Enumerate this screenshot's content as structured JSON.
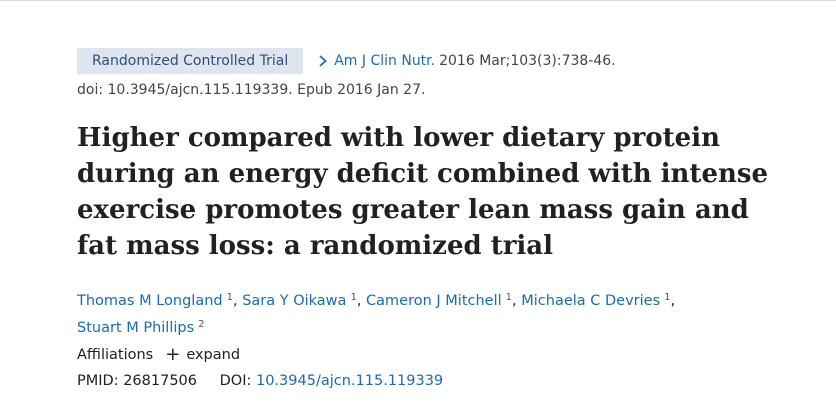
{
  "article": {
    "publication_type": "Randomized Controlled Trial",
    "journal": "Am J Clin Nutr.",
    "citation": "2016 Mar;103(3):738-46.",
    "doi_line": "doi: 10.3945/ajcn.115.119339. Epub 2016 Jan 27.",
    "title": "Higher compared with lower dietary protein during an energy deficit combined with intense exercise promotes greater lean mass gain and fat mass loss: a randomized trial",
    "authors": [
      {
        "name": "Thomas M Longland",
        "aff": "1"
      },
      {
        "name": "Sara Y Oikawa",
        "aff": "1"
      },
      {
        "name": "Cameron J Mitchell",
        "aff": "1"
      },
      {
        "name": "Michaela C Devries",
        "aff": "1"
      },
      {
        "name": "Stuart M Phillips",
        "aff": "2"
      }
    ],
    "affiliations_label": "Affiliations",
    "expand_label": "expand",
    "pmid_label": "PMID:",
    "pmid": "26817506",
    "doi_label": "DOI:",
    "doi": "10.3945/ajcn.115.119339"
  },
  "colors": {
    "link": "#1a6bb3",
    "badge_bg": "#dfe5ee",
    "badge_text": "#2d4d7a"
  },
  "icons": {
    "journal_chevron": "chevron-right-icon",
    "expand": "plus-icon"
  }
}
